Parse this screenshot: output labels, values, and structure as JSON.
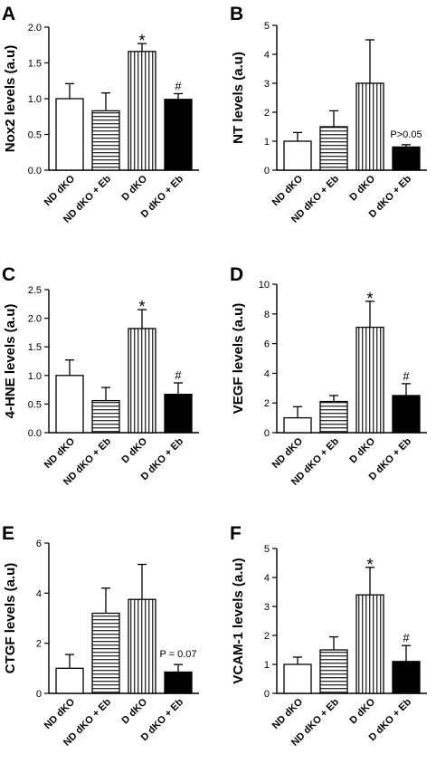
{
  "colors": {
    "ink": "#000000",
    "background": "#ffffff"
  },
  "chart_data": [
    {
      "panel": "A",
      "type": "bar",
      "ylabel": "Nox2 levels (a.u)",
      "ylim": [
        0,
        2.0
      ],
      "yticks": [
        "0.0",
        "0.5",
        "1.0",
        "1.5",
        "2.0"
      ],
      "categories": [
        "ND dKO",
        "ND dKO + Eb",
        "D dKO",
        "D dKO + Eb"
      ],
      "values": [
        1.0,
        0.83,
        1.66,
        0.99
      ],
      "errors": [
        0.21,
        0.25,
        0.11,
        0.08
      ],
      "annotations": [
        "",
        "",
        "*",
        "#"
      ],
      "note": ""
    },
    {
      "panel": "B",
      "type": "bar",
      "ylabel": "NT levels (a.u)",
      "ylim": [
        0,
        5
      ],
      "yticks": [
        "0",
        "1",
        "2",
        "3",
        "4",
        "5"
      ],
      "categories": [
        "ND dKO",
        "ND dKO + Eb",
        "D dKO",
        "D dKO + Eb"
      ],
      "values": [
        1.0,
        1.5,
        3.0,
        0.8
      ],
      "errors": [
        0.3,
        0.55,
        1.5,
        0.08
      ],
      "annotations": [
        "",
        "",
        "",
        ""
      ],
      "note": "P>0.05"
    },
    {
      "panel": "C",
      "type": "bar",
      "ylabel": "4-HNE levels (a.u)",
      "ylim": [
        0,
        2.5
      ],
      "yticks": [
        "0.0",
        "0.5",
        "1.0",
        "1.5",
        "2.0",
        "2.5"
      ],
      "categories": [
        "ND dKO",
        "ND dKO + Eb",
        "D dKO",
        "D dKO + Eb"
      ],
      "values": [
        1.0,
        0.56,
        1.82,
        0.67
      ],
      "errors": [
        0.27,
        0.23,
        0.33,
        0.2
      ],
      "annotations": [
        "",
        "",
        "*",
        "#"
      ],
      "note": ""
    },
    {
      "panel": "D",
      "type": "bar",
      "ylabel": "VEGF levels (a.u)",
      "ylim": [
        0,
        10
      ],
      "yticks": [
        "0",
        "2",
        "4",
        "6",
        "8",
        "10"
      ],
      "categories": [
        "ND dKO",
        "ND dKO + Eb",
        "D dKO",
        "D dKO + Eb"
      ],
      "values": [
        1.0,
        2.1,
        7.1,
        2.5
      ],
      "errors": [
        0.75,
        0.4,
        1.75,
        0.8
      ],
      "annotations": [
        "",
        "",
        "*",
        "#"
      ],
      "note": ""
    },
    {
      "panel": "E",
      "type": "bar",
      "ylabel": "CTGF levels (a.u)",
      "ylim": [
        0,
        6
      ],
      "yticks": [
        "0",
        "2",
        "4",
        "6"
      ],
      "categories": [
        "ND dKO",
        "ND dKO + Eb",
        "D dKO",
        "D dKO + Eb"
      ],
      "values": [
        1.0,
        3.2,
        3.75,
        0.85
      ],
      "errors": [
        0.55,
        1.0,
        1.4,
        0.3
      ],
      "annotations": [
        "",
        "",
        "",
        ""
      ],
      "note": "P = 0.07"
    },
    {
      "panel": "F",
      "type": "bar",
      "ylabel": "VCAM-1 levels (a.u)",
      "ylim": [
        0,
        5
      ],
      "yticks": [
        "0",
        "1",
        "2",
        "3",
        "4",
        "5"
      ],
      "categories": [
        "ND dKO",
        "ND dKO + Eb",
        "D dKO",
        "D dKO + Eb"
      ],
      "values": [
        1.0,
        1.5,
        3.4,
        1.1
      ],
      "errors": [
        0.25,
        0.45,
        0.95,
        0.55
      ],
      "annotations": [
        "",
        "",
        "*",
        "#"
      ],
      "note": ""
    }
  ]
}
